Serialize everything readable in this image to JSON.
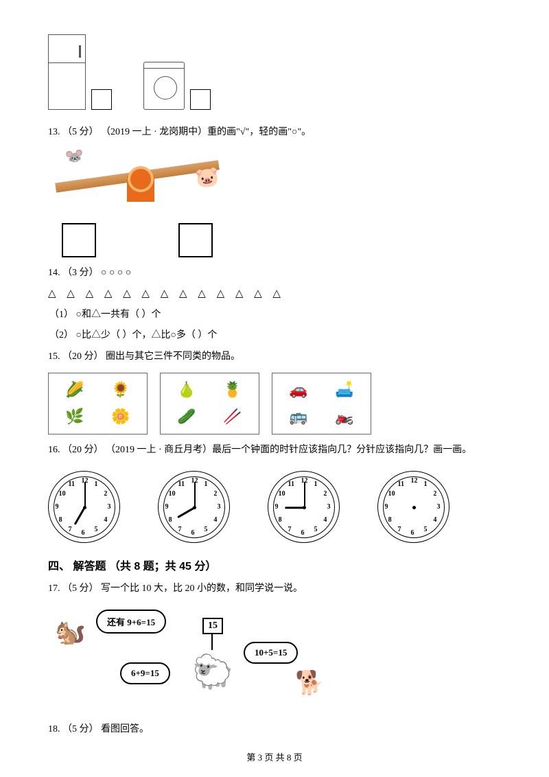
{
  "q12": {
    "boxes": 2
  },
  "q13": {
    "text": "13. （5 分） （2019 一上 · 龙岗期中）重的画\"√\"，轻的画\"○\"。",
    "boxes": 2
  },
  "q14": {
    "text": "14. （3 分） ○ ○ ○ ○",
    "triangles": "△ △ △ △ △ △ △ △ △ △ △ △ △",
    "sub1": "（1） ○和△一共有（     ）个",
    "sub2": "（2） ○比△少（     ）个，△比○多（     ）个"
  },
  "q15": {
    "text": "15. （20 分） 圈出与其它三件不同类的物品。",
    "box1": [
      "🌽",
      "🌻",
      "🌿",
      "🌼"
    ],
    "box2": [
      "🍐",
      "🍍",
      "🥒",
      "🥢"
    ],
    "box3": [
      "🚗",
      "🛋️",
      "🚌",
      "🏍️"
    ]
  },
  "q16": {
    "text": "16. （20 分） （2019 一上 · 商丘月考）最后一个钟面的时针应该指向几？分针应该指向几？画一画。",
    "clocks": [
      {
        "hour_angle": 210,
        "min_angle": 0,
        "blank": false
      },
      {
        "hour_angle": 240,
        "min_angle": 0,
        "blank": false
      },
      {
        "hour_angle": 270,
        "min_angle": 0,
        "blank": false
      },
      {
        "hour_angle": 0,
        "min_angle": 0,
        "blank": true
      }
    ],
    "clock_numbers": [
      "12",
      "1",
      "2",
      "3",
      "4",
      "5",
      "6",
      "7",
      "8",
      "9",
      "10",
      "11"
    ]
  },
  "section4": {
    "title": "四、 解答题 （共 8 题；共 45 分）"
  },
  "q17": {
    "text": "17. （5 分） 写一个比 10 大，比 20 小的数，和同学说一说。",
    "bubble1": "还有 9+6=15",
    "bubble2": "6+9=15",
    "bubble3": "10+5=15",
    "sign": "15"
  },
  "q18": {
    "text": "18. （5 分） 看图回答。"
  },
  "footer": {
    "text": "第 3 页 共 8 页"
  }
}
